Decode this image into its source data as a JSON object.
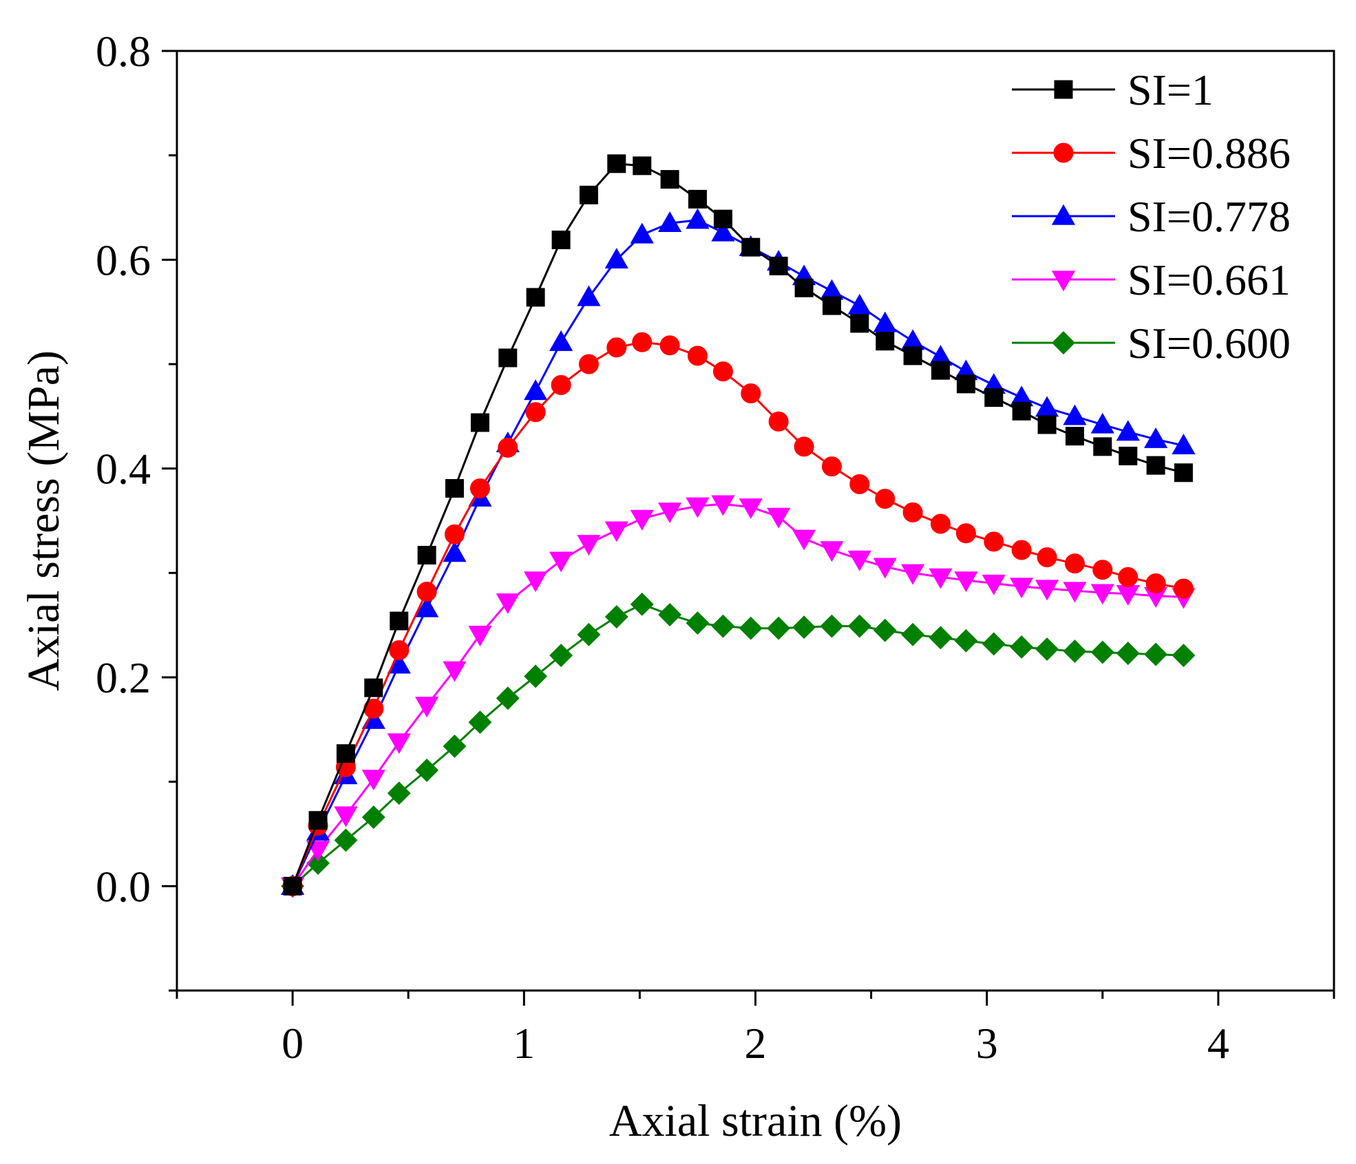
{
  "chart_data": {
    "type": "line",
    "title": "",
    "xlabel": "Axial strain (%)",
    "ylabel": "Axial stress (MPa)",
    "xlim": [
      -0.5,
      4.5
    ],
    "ylim": [
      -0.1,
      0.8
    ],
    "xticks": [
      0,
      1,
      2,
      3,
      4
    ],
    "yticks": [
      0.0,
      0.2,
      0.4,
      0.6,
      0.8
    ],
    "xtick_labels": [
      "0",
      "1",
      "2",
      "3",
      "4"
    ],
    "ytick_labels": [
      "0.0",
      "0.2",
      "0.4",
      "0.6",
      "0.8"
    ],
    "grid": false,
    "legend_position": "top-right",
    "x": [
      0,
      0.11,
      0.23,
      0.35,
      0.46,
      0.58,
      0.7,
      0.81,
      0.93,
      1.05,
      1.16,
      1.28,
      1.4,
      1.51,
      1.63,
      1.75,
      1.86,
      1.98,
      2.1,
      2.21,
      2.33,
      2.45,
      2.56,
      2.68,
      2.8,
      2.91,
      3.03,
      3.15,
      3.26,
      3.38,
      3.5,
      3.61,
      3.73,
      3.85
    ],
    "series": [
      {
        "name": "SI=1",
        "color": "#000000",
        "marker": "square",
        "values": [
          0,
          0.063,
          0.127,
          0.19,
          0.254,
          0.317,
          0.381,
          0.444,
          0.506,
          0.564,
          0.619,
          0.662,
          0.692,
          0.69,
          0.677,
          0.658,
          0.639,
          0.612,
          0.594,
          0.573,
          0.556,
          0.539,
          0.522,
          0.508,
          0.494,
          0.481,
          0.468,
          0.455,
          0.442,
          0.431,
          0.421,
          0.412,
          0.403,
          0.396
        ]
      },
      {
        "name": "SI=0.886",
        "color": "#ff0000",
        "marker": "circle",
        "values": [
          0,
          0.058,
          0.114,
          0.17,
          0.226,
          0.282,
          0.337,
          0.381,
          0.42,
          0.454,
          0.48,
          0.5,
          0.516,
          0.521,
          0.518,
          0.508,
          0.493,
          0.472,
          0.445,
          0.421,
          0.402,
          0.385,
          0.371,
          0.358,
          0.347,
          0.338,
          0.33,
          0.322,
          0.315,
          0.309,
          0.303,
          0.296,
          0.29,
          0.285
        ]
      },
      {
        "name": "SI=0.778",
        "color": "#0000ff",
        "marker": "triangle-up",
        "values": [
          0,
          0.052,
          0.106,
          0.159,
          0.212,
          0.266,
          0.319,
          0.372,
          0.424,
          0.474,
          0.521,
          0.564,
          0.6,
          0.624,
          0.635,
          0.638,
          0.626,
          0.612,
          0.598,
          0.584,
          0.57,
          0.556,
          0.539,
          0.522,
          0.507,
          0.493,
          0.48,
          0.468,
          0.458,
          0.45,
          0.442,
          0.435,
          0.428,
          0.422
        ]
      },
      {
        "name": "SI=0.661",
        "color": "#ff00ff",
        "marker": "triangle-down",
        "values": [
          0,
          0.035,
          0.068,
          0.103,
          0.138,
          0.173,
          0.207,
          0.241,
          0.272,
          0.293,
          0.312,
          0.328,
          0.341,
          0.352,
          0.359,
          0.364,
          0.366,
          0.363,
          0.354,
          0.333,
          0.322,
          0.313,
          0.306,
          0.3,
          0.296,
          0.293,
          0.29,
          0.287,
          0.285,
          0.283,
          0.281,
          0.28,
          0.278,
          0.277
        ]
      },
      {
        "name": "SI=0.600",
        "color": "#008000",
        "marker": "diamond",
        "values": [
          0,
          0.022,
          0.044,
          0.066,
          0.089,
          0.111,
          0.134,
          0.157,
          0.18,
          0.201,
          0.221,
          0.241,
          0.258,
          0.27,
          0.26,
          0.252,
          0.249,
          0.247,
          0.247,
          0.248,
          0.249,
          0.249,
          0.245,
          0.241,
          0.238,
          0.235,
          0.232,
          0.229,
          0.227,
          0.225,
          0.224,
          0.223,
          0.222,
          0.221
        ]
      }
    ]
  }
}
